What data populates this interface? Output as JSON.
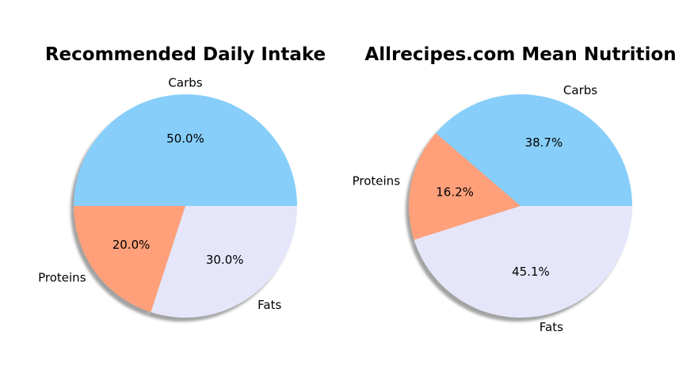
{
  "chart_data": [
    {
      "type": "pie",
      "title": "Recommended Daily Intake",
      "shadow": true,
      "start_angle_deg": 0,
      "direction": "counterclockwise",
      "slices": [
        {
          "label": "Carbs",
          "value": 50.0,
          "pct_label": "50.0%",
          "color": "#87CEFA"
        },
        {
          "label": "Proteins",
          "value": 20.0,
          "pct_label": "20.0%",
          "color": "#FFA07A"
        },
        {
          "label": "Fats",
          "value": 30.0,
          "pct_label": "30.0%",
          "color": "#E6E6FA"
        }
      ]
    },
    {
      "type": "pie",
      "title": "Allrecipes.com Mean Nutrition",
      "shadow": true,
      "start_angle_deg": 0,
      "direction": "counterclockwise",
      "slices": [
        {
          "label": "Carbs",
          "value": 38.7,
          "pct_label": "38.7%",
          "color": "#87CEFA"
        },
        {
          "label": "Proteins",
          "value": 16.2,
          "pct_label": "16.2%",
          "color": "#FFA07A"
        },
        {
          "label": "Fats",
          "value": 45.1,
          "pct_label": "45.1%",
          "color": "#E6E6FA"
        }
      ]
    }
  ]
}
